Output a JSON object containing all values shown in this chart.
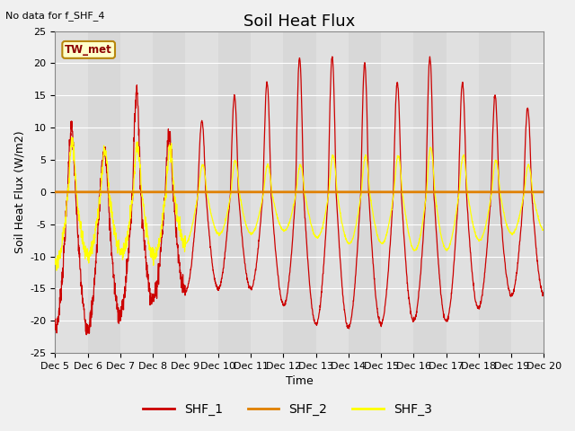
{
  "title": "Soil Heat Flux",
  "xlabel": "Time",
  "ylabel": "Soil Heat Flux (W/m2)",
  "top_left_text": "No data for f_SHF_4",
  "annotation_box": "TW_met",
  "ylim": [
    -25,
    25
  ],
  "yticks": [
    -25,
    -20,
    -15,
    -10,
    -5,
    0,
    5,
    10,
    15,
    20,
    25
  ],
  "xtick_labels": [
    "Dec 5",
    "Dec 6",
    "Dec 7",
    "Dec 8",
    "Dec 9",
    "Dec 10",
    "Dec 11",
    "Dec 12",
    "Dec 13",
    "Dec 14",
    "Dec 15",
    "Dec 16",
    "Dec 17",
    "Dec 18",
    "Dec 19",
    "Dec 20"
  ],
  "shf1_color": "#cc0000",
  "shf2_color": "#e08000",
  "shf3_color": "#ffff00",
  "fig_bg_color": "#f0f0f0",
  "plot_bg_color": "#d8d8d8",
  "legend_labels": [
    "SHF_1",
    "SHF_2",
    "SHF_3"
  ],
  "title_fontsize": 13,
  "axis_label_fontsize": 9,
  "tick_fontsize": 8,
  "n_days": 15,
  "points_per_day": 144
}
